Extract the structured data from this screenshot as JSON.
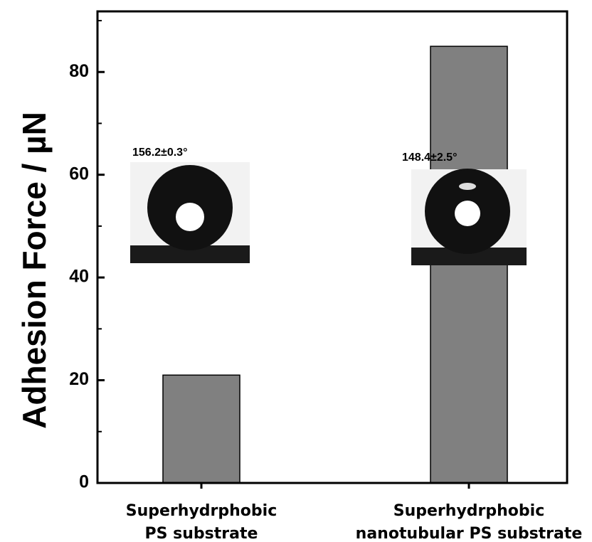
{
  "chart_data": {
    "type": "bar",
    "y_label": "Adhesion Force / µN",
    "categories": [
      "Superhydrphobic\nPS substrate",
      "Superhydrphobic\nnanotubular PS substrate"
    ],
    "values": [
      21,
      85
    ],
    "color": "#808080",
    "ylim": [
      0,
      91.8
    ],
    "yticks": [
      0,
      20,
      40,
      60,
      80
    ],
    "yminorticks": [
      10,
      30,
      50,
      70,
      90
    ],
    "annotations": [
      "156.2±0.3°",
      "148.4±2.5°"
    ]
  }
}
